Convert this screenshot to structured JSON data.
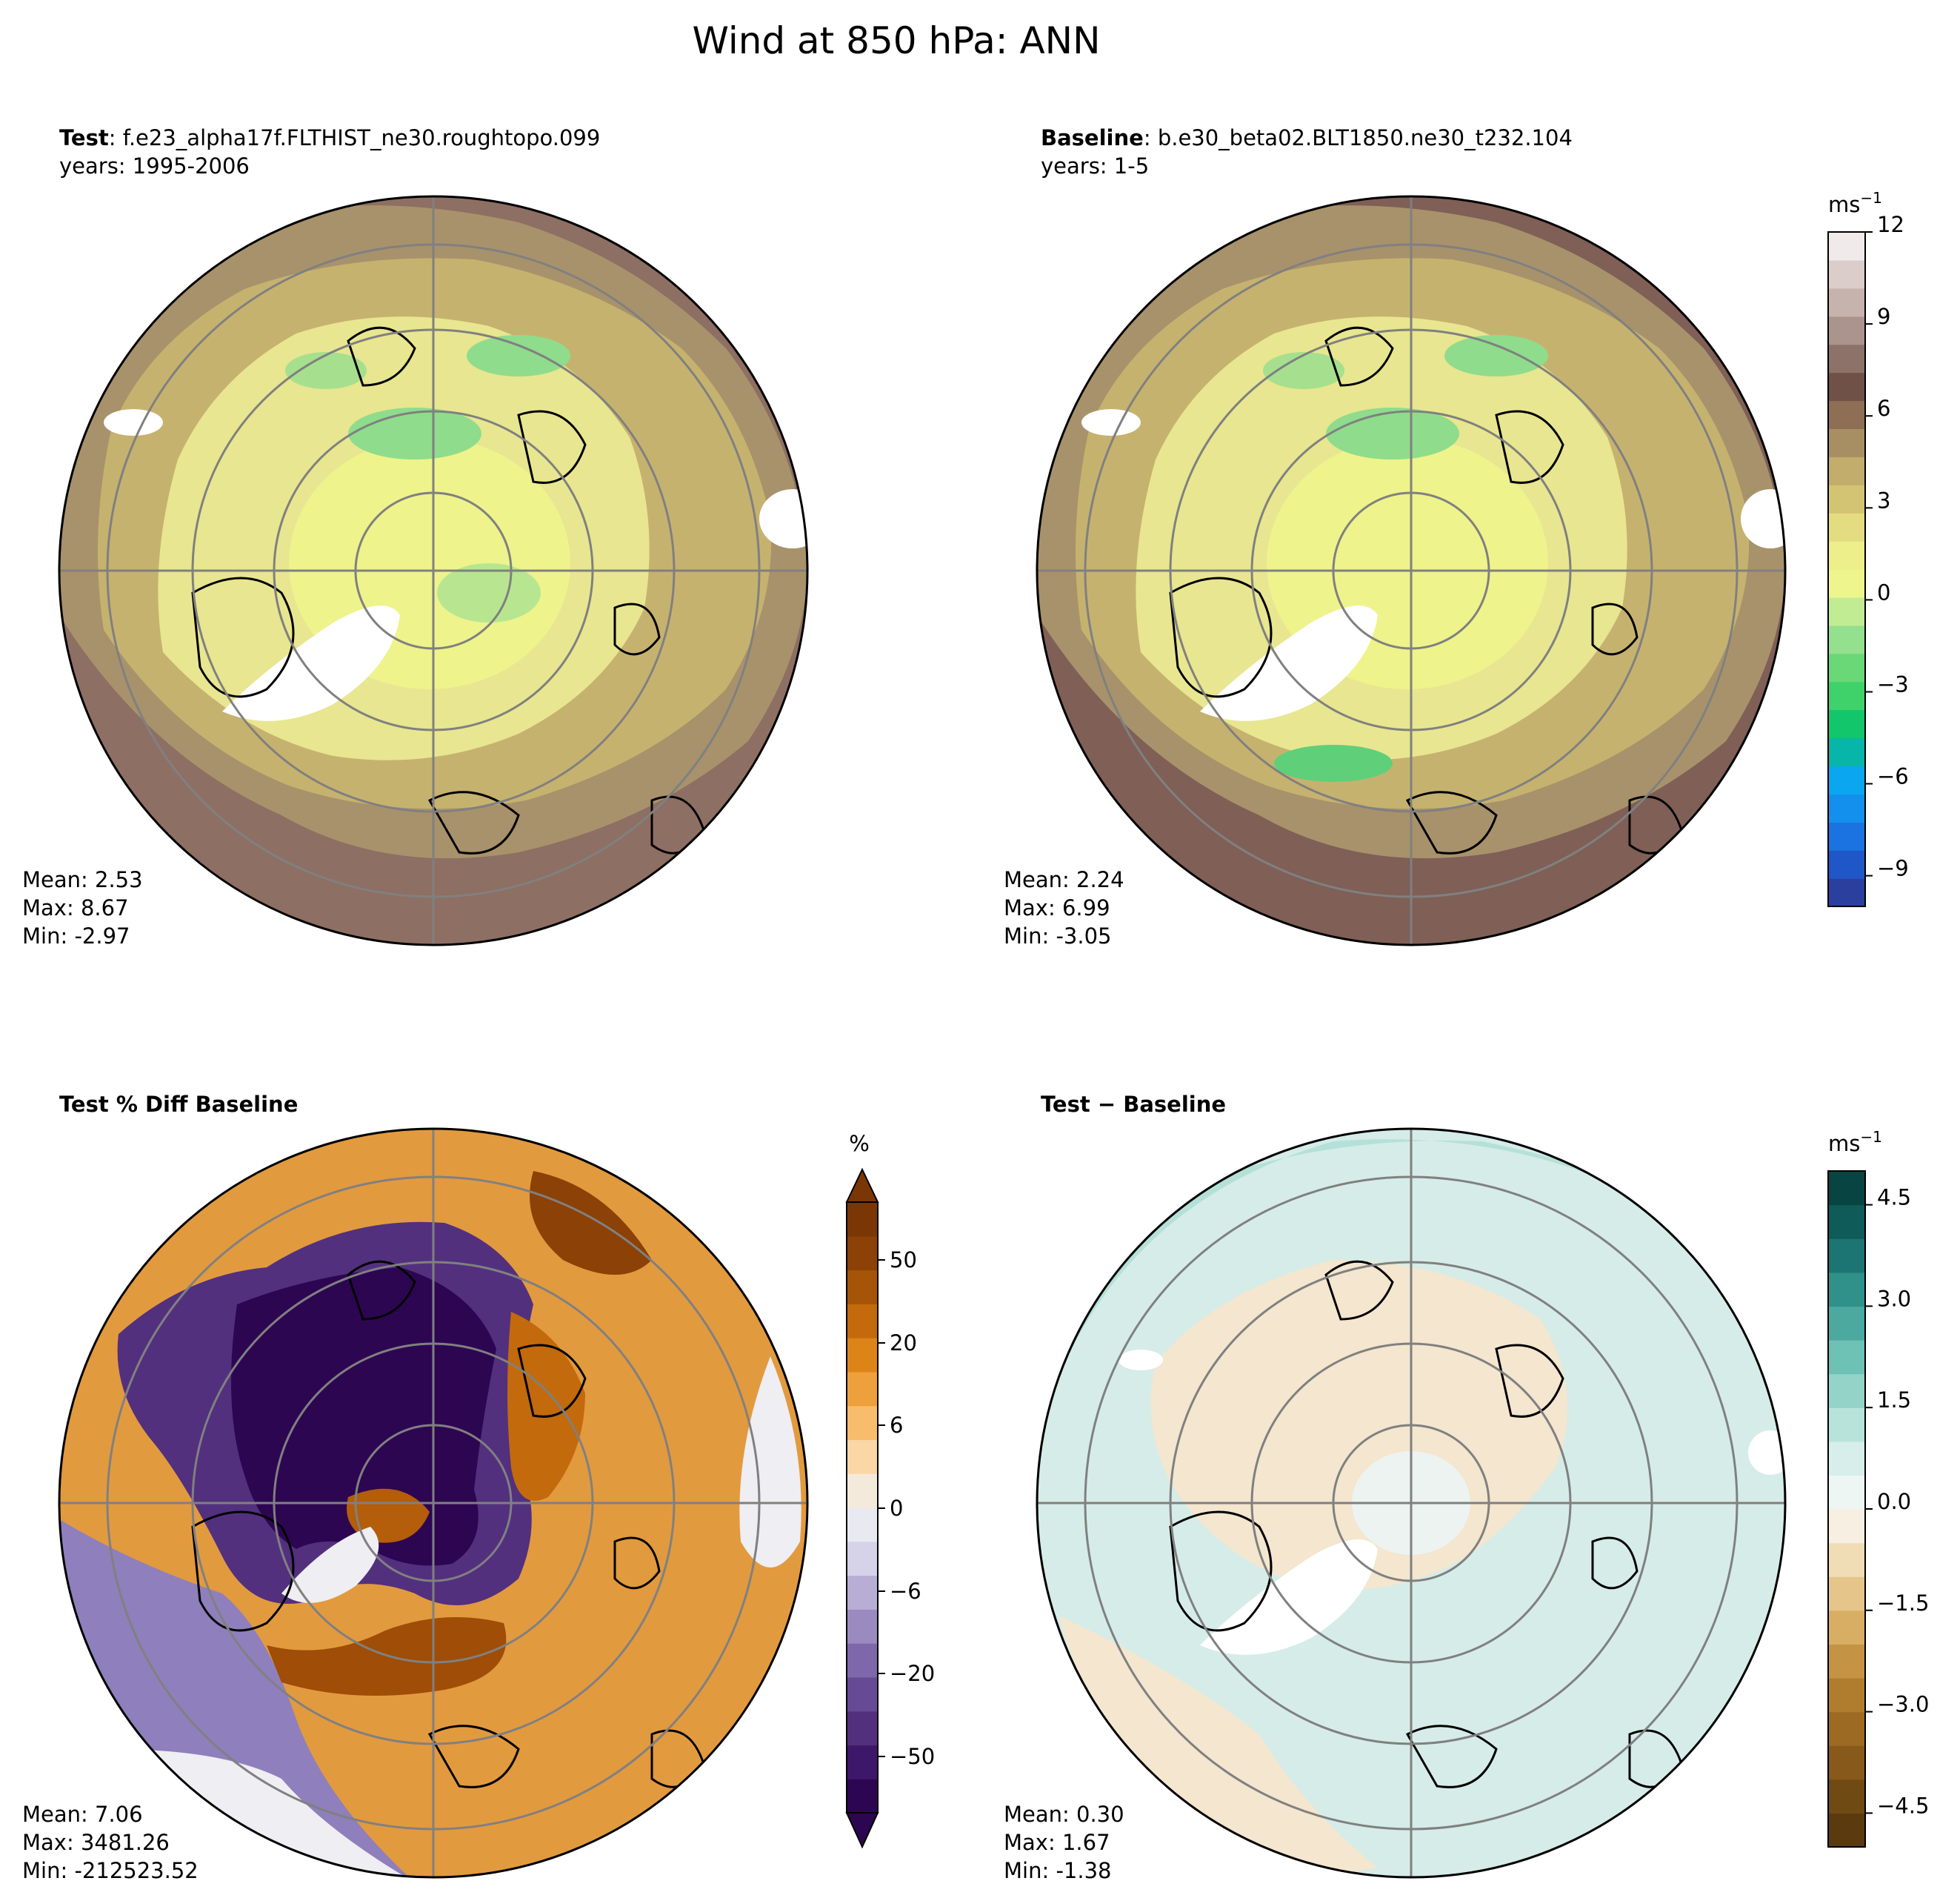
{
  "figure": {
    "title": "Wind at 850 hPa: ANN"
  },
  "chart_data": [
    {
      "type": "heatmap",
      "projection": "north-polar-stereographic",
      "label_bold": "Test",
      "label_rest": "f.e23_alpha17f.FLTHIST_ne30.roughtopo.099",
      "years": "years: 1995-2006",
      "stats": {
        "mean": "Mean:  2.53",
        "max": "Max:  8.67",
        "min": "Min: -2.97"
      },
      "colors": {
        "ring_outer": "#8e6f63",
        "ring_mid": "#a8926b",
        "mid": "#c6b26f",
        "inner": "#e8e690",
        "core": "#eef38c",
        "green": "#8fdc8c",
        "ice": "#ffffff"
      }
    },
    {
      "type": "heatmap",
      "projection": "north-polar-stereographic",
      "label_bold": "Baseline",
      "label_rest": "b.e30_beta02.BLT1850.ne30_t232.104",
      "years": "years: 1-5",
      "stats": {
        "mean": "Mean:  2.24",
        "max": "Max:  6.99",
        "min": "Min: -3.05"
      },
      "colors": {
        "ring_outer": "#7f5f56",
        "ring_mid": "#a8926b",
        "mid": "#c6b26f",
        "inner": "#e8e690",
        "core": "#eef38c",
        "green": "#8fdc8c",
        "ice": "#ffffff"
      },
      "colorbar": {
        "unit": "ms",
        "unit_exp": "−1",
        "range": [
          -10,
          12
        ],
        "ticks": [
          "12",
          "9",
          "6",
          "3",
          "0",
          "−3",
          "−6",
          "−9"
        ],
        "tick_values": [
          12,
          9,
          6,
          3,
          0,
          -3,
          -6,
          -9
        ],
        "colors": [
          "#2a3f9e",
          "#1f57c8",
          "#1a73e0",
          "#1390ee",
          "#0aa7f0",
          "#07b6a8",
          "#12c66c",
          "#3fd26a",
          "#6ad877",
          "#93e08e",
          "#c2ec93",
          "#eef58d",
          "#ecef8a",
          "#e4dc80",
          "#d3c474",
          "#c2ad6c",
          "#a88f63",
          "#8e6f55",
          "#6f5148",
          "#8d726a",
          "#ab948d",
          "#c6b3ad",
          "#dacdca",
          "#f0ebea"
        ]
      }
    },
    {
      "type": "heatmap",
      "projection": "north-polar-stereographic",
      "label_bold": "Test % Diff Baseline",
      "label_rest": "",
      "years": "",
      "stats": {
        "mean": "Mean:  7.06",
        "max": "Max: 3481.26",
        "min": "Min: -212523.52"
      },
      "colors": {
        "outer": "#e29a3f",
        "mid": "#d4801c",
        "purple_outer": "#8f7fbc",
        "purple_inner": "#2d0652",
        "pale": "#eeeef3",
        "brown": "#9f4d07"
      },
      "colorbar": {
        "unit": "%",
        "extend": "both",
        "ticks": [
          "50",
          "20",
          "6",
          "0",
          "−6",
          "−20",
          "−50"
        ],
        "colors": [
          "#2d0652",
          "#3d1769",
          "#52307e",
          "#674a95",
          "#7e68ab",
          "#9b8ac0",
          "#b8aed5",
          "#d6d2e8",
          "#e9e9f1",
          "#f4eadc",
          "#fbd7a6",
          "#f8bd6c",
          "#eea03c",
          "#dd8418",
          "#c36a0c",
          "#a65508",
          "#8c4106",
          "#7a3705"
        ],
        "extend_colors": {
          "low": "#2d0652",
          "high": "#7a3705"
        }
      }
    },
    {
      "type": "heatmap",
      "projection": "north-polar-stereographic",
      "label_bold": "Test − Baseline",
      "label_rest": "",
      "years": "",
      "stats": {
        "mean": "Mean:  0.30",
        "max": "Max:  1.67",
        "min": "Min: -1.38"
      },
      "colors": {
        "teal_light": "#d6ece8",
        "teal": "#b4e0d8",
        "tan": "#f4e6cf",
        "pale": "#ecf3f1",
        "ice": "#ffffff"
      },
      "colorbar": {
        "unit": "ms",
        "unit_exp": "−1",
        "range": [
          -5,
          5
        ],
        "ticks": [
          "4.5",
          "3.0",
          "1.5",
          "0.0",
          "−1.5",
          "−3.0",
          "−4.5"
        ],
        "tick_values": [
          4.5,
          3.0,
          1.5,
          0.0,
          -1.5,
          -3.0,
          -4.5
        ],
        "colors": [
          "#5a3a0e",
          "#6f4a12",
          "#87591a",
          "#9c6a22",
          "#b07d2e",
          "#c49444",
          "#d7ae64",
          "#e5c58a",
          "#f0ddb6",
          "#f7efe1",
          "#eef6f4",
          "#d7eeea",
          "#b8e3db",
          "#93d3c8",
          "#6ec1b5",
          "#4ba9a0",
          "#30908a",
          "#1c7572",
          "#0f5b59",
          "#084441"
        ]
      }
    }
  ]
}
